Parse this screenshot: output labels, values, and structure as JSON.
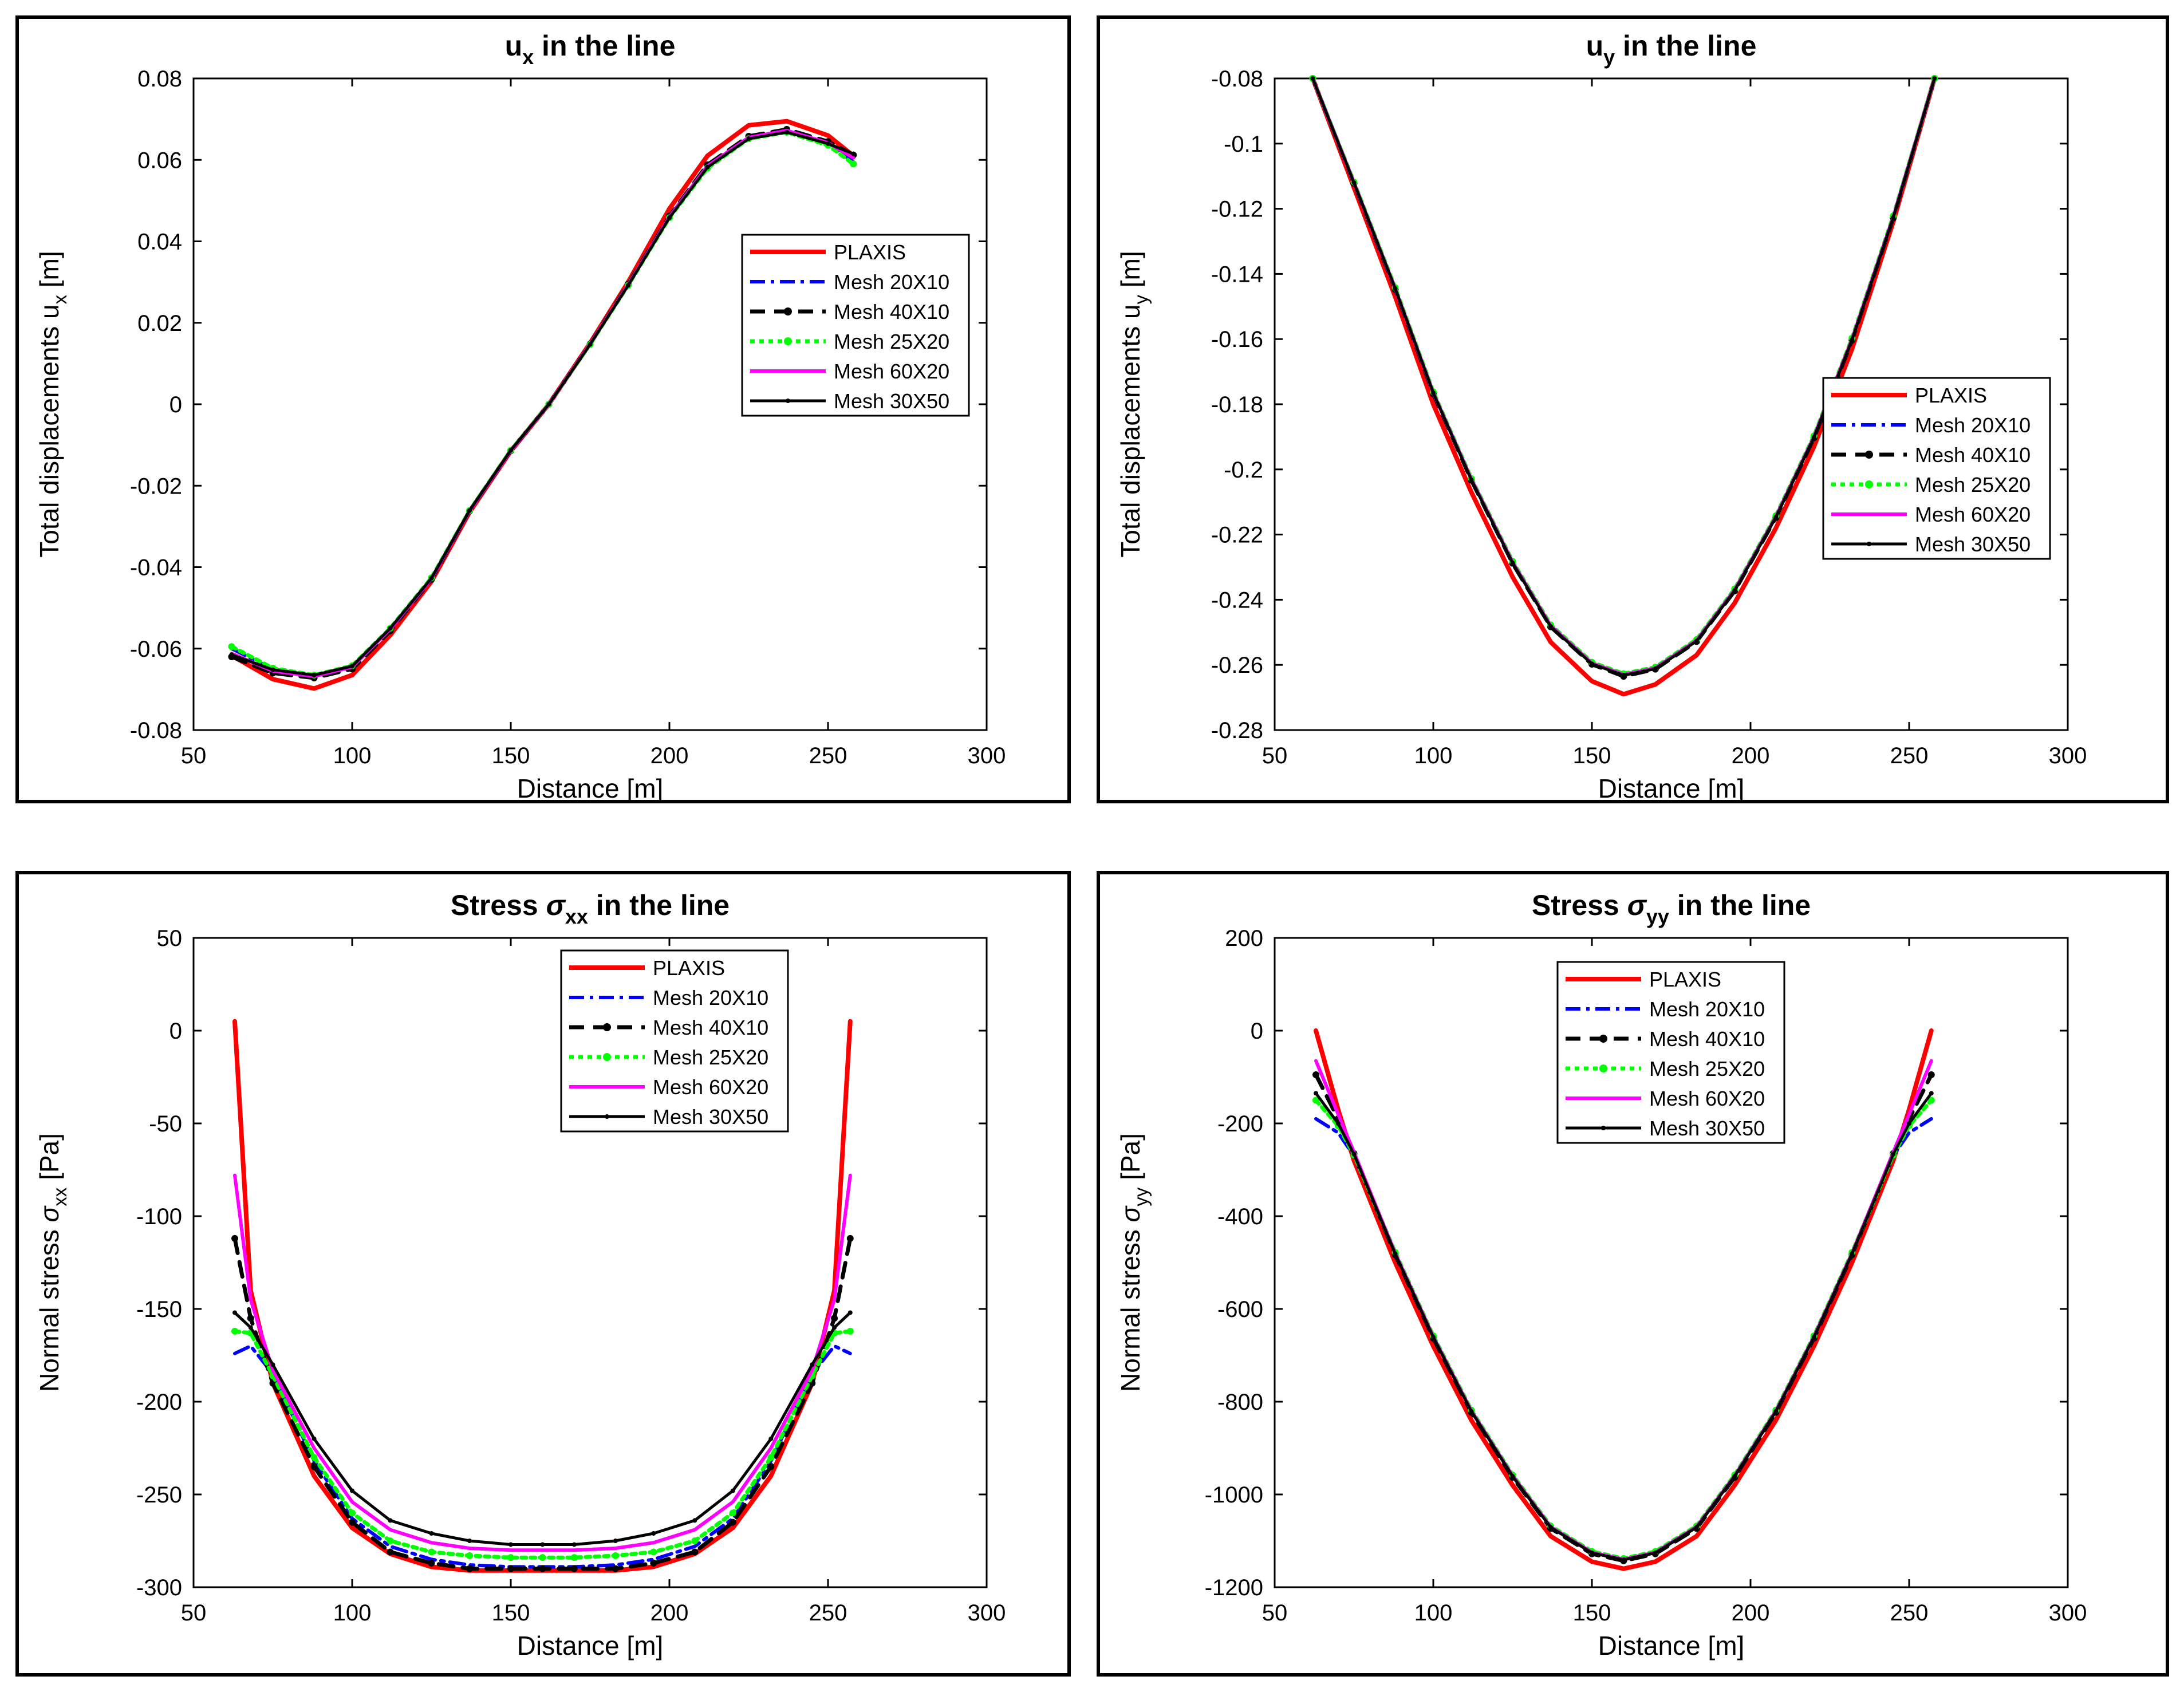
{
  "figure": {
    "legend_entries": [
      "PLAXIS",
      "Mesh 20X10",
      "Mesh 40X10",
      "Mesh 25X20",
      "Mesh 60X20",
      "Mesh 30X50"
    ],
    "series_colors": [
      "#ff0000",
      "#0000ff",
      "#000000",
      "#00ff00",
      "#ff00ff",
      "#000000"
    ]
  },
  "chart_data": [
    {
      "type": "line",
      "title": "u_x in the line",
      "title_parts": [
        "u",
        "x",
        " in the line"
      ],
      "xlabel": "Distance [m]",
      "ylabel": "Total displacements u_x [m]",
      "ylabel_parts": [
        "Total displacements u",
        "x",
        " [m]"
      ],
      "xlim": [
        50,
        300
      ],
      "ylim": [
        -0.08,
        0.08
      ],
      "xticks": [
        50,
        100,
        150,
        200,
        250,
        300
      ],
      "yticks": [
        -0.08,
        -0.06,
        -0.04,
        -0.02,
        0,
        0.02,
        0.04,
        0.06,
        0.08
      ],
      "ytick_labels": [
        "-0.08",
        "-0.06",
        "-0.04",
        "-0.02",
        "0",
        "0.02",
        "0.04",
        "0.06",
        "0.08"
      ],
      "legend_location": "right",
      "x": [
        62,
        75,
        88,
        100,
        112,
        125,
        137,
        150,
        162,
        175,
        187,
        200,
        212,
        225,
        237,
        250,
        258
      ],
      "series": [
        {
          "name": "PLAXIS",
          "values": [
            -0.0617,
            -0.0675,
            -0.0698,
            -0.0665,
            -0.0567,
            -0.0435,
            -0.0265,
            -0.0115,
            0.0,
            0.015,
            0.03,
            0.048,
            0.061,
            0.0685,
            0.0695,
            0.066,
            0.061
          ]
        },
        {
          "name": "Mesh 20X10",
          "values": [
            -0.06,
            -0.065,
            -0.0668,
            -0.0645,
            -0.0552,
            -0.0428,
            -0.0262,
            -0.0114,
            0.0,
            0.0148,
            0.0293,
            0.046,
            0.0585,
            0.0655,
            0.0672,
            0.064,
            0.0595
          ]
        },
        {
          "name": "Mesh 40X10",
          "values": [
            -0.062,
            -0.066,
            -0.0672,
            -0.065,
            -0.0556,
            -0.043,
            -0.0262,
            -0.0114,
            0.0,
            0.0148,
            0.0295,
            0.0462,
            0.0588,
            0.0658,
            0.0675,
            0.0645,
            0.0612
          ]
        },
        {
          "name": "Mesh 25X20",
          "values": [
            -0.0595,
            -0.0648,
            -0.0665,
            -0.0642,
            -0.055,
            -0.0426,
            -0.0261,
            -0.0113,
            0.0,
            0.0147,
            0.0292,
            0.0458,
            0.058,
            0.0652,
            0.0668,
            0.0636,
            0.059
          ]
        },
        {
          "name": "Mesh 60X20",
          "values": [
            -0.0612,
            -0.0655,
            -0.0668,
            -0.0645,
            -0.0552,
            -0.0428,
            -0.0262,
            -0.0114,
            0.0,
            0.0148,
            0.0293,
            0.046,
            0.0585,
            0.0655,
            0.0672,
            0.0642,
            0.0605
          ]
        },
        {
          "name": "Mesh 30X50",
          "values": [
            -0.0615,
            -0.0652,
            -0.0665,
            -0.0643,
            -0.055,
            -0.0427,
            -0.0261,
            -0.0113,
            0.0,
            0.0147,
            0.0292,
            0.0458,
            0.0582,
            0.0652,
            0.0668,
            0.064,
            0.0615
          ]
        }
      ]
    },
    {
      "type": "line",
      "title": "u_y in the line",
      "title_parts": [
        "u",
        "y",
        " in the line"
      ],
      "xlabel": "Distance [m]",
      "ylabel": "Total displacements u_y [m]",
      "ylabel_parts": [
        "Total displacements u",
        "y",
        " [m]"
      ],
      "xlim": [
        50,
        300
      ],
      "ylim": [
        -0.28,
        -0.08
      ],
      "xticks": [
        50,
        100,
        150,
        200,
        250,
        300
      ],
      "yticks": [
        -0.28,
        -0.26,
        -0.24,
        -0.22,
        -0.2,
        -0.18,
        -0.16,
        -0.14,
        -0.12,
        -0.1,
        -0.08
      ],
      "ytick_labels": [
        "-0.28",
        "-0.26",
        "-0.24",
        "-0.22",
        "-0.2",
        "-0.18",
        "-0.16",
        "-0.14",
        "-0.12",
        "-0.1",
        "-0.08"
      ],
      "legend_location": "right",
      "x": [
        62,
        75,
        88,
        100,
        112,
        125,
        137,
        150,
        160,
        170,
        183,
        195,
        208,
        220,
        232,
        245,
        258
      ],
      "series": [
        {
          "name": "PLAXIS",
          "values": [
            -0.08,
            -0.1135,
            -0.147,
            -0.18,
            -0.207,
            -0.233,
            -0.253,
            -0.265,
            -0.269,
            -0.266,
            -0.257,
            -0.241,
            -0.218,
            -0.193,
            -0.163,
            -0.124,
            -0.08
          ]
        },
        {
          "name": "Mesh 20X10",
          "values": [
            -0.08,
            -0.112,
            -0.1445,
            -0.1765,
            -0.203,
            -0.2285,
            -0.248,
            -0.2595,
            -0.263,
            -0.261,
            -0.2525,
            -0.237,
            -0.2145,
            -0.19,
            -0.16,
            -0.1225,
            -0.08
          ]
        },
        {
          "name": "Mesh 40X10",
          "values": [
            -0.08,
            -0.1122,
            -0.1448,
            -0.1768,
            -0.2033,
            -0.2288,
            -0.2483,
            -0.2598,
            -0.2635,
            -0.2613,
            -0.2528,
            -0.2373,
            -0.2148,
            -0.1903,
            -0.1603,
            -0.1228,
            -0.08
          ]
        },
        {
          "name": "Mesh 25X20",
          "values": [
            -0.08,
            -0.1118,
            -0.1442,
            -0.1762,
            -0.2028,
            -0.2282,
            -0.2477,
            -0.2592,
            -0.2627,
            -0.2607,
            -0.2522,
            -0.2367,
            -0.2142,
            -0.1897,
            -0.1597,
            -0.1222,
            -0.08
          ]
        },
        {
          "name": "Mesh 60X20",
          "values": [
            -0.08,
            -0.112,
            -0.1445,
            -0.1765,
            -0.203,
            -0.2285,
            -0.248,
            -0.2595,
            -0.263,
            -0.261,
            -0.2525,
            -0.237,
            -0.2145,
            -0.19,
            -0.16,
            -0.1225,
            -0.08
          ]
        },
        {
          "name": "Mesh 30X50",
          "values": [
            -0.08,
            -0.112,
            -0.1445,
            -0.1765,
            -0.2032,
            -0.2287,
            -0.2482,
            -0.2597,
            -0.2632,
            -0.2612,
            -0.2527,
            -0.2372,
            -0.2147,
            -0.1902,
            -0.1602,
            -0.1227,
            -0.08
          ]
        }
      ]
    },
    {
      "type": "line",
      "title": "Stress σ_xx in the line",
      "title_parts": [
        "Stress ",
        "σ",
        "xx",
        " in the line"
      ],
      "xlabel": "Distance [m]",
      "ylabel": "Normal stress σ_xx [Pa]",
      "ylabel_parts": [
        "Normal stress ",
        "σ",
        "xx",
        " [Pa]"
      ],
      "xlim": [
        50,
        300
      ],
      "ylim": [
        -300,
        50
      ],
      "xticks": [
        50,
        100,
        150,
        200,
        250,
        300
      ],
      "yticks": [
        -300,
        -250,
        -200,
        -150,
        -100,
        -50,
        0,
        50
      ],
      "ytick_labels": [
        "-300",
        "-250",
        "-200",
        "-150",
        "-100",
        "-50",
        "0",
        "50"
      ],
      "legend_location": "top-center",
      "x": [
        63,
        68,
        75,
        88,
        100,
        112,
        125,
        137,
        150,
        160,
        170,
        183,
        195,
        208,
        220,
        232,
        245,
        252,
        257
      ],
      "series": [
        {
          "name": "PLAXIS",
          "values": [
            5,
            -140,
            -190,
            -240,
            -268,
            -282,
            -289,
            -291,
            -291,
            -291,
            -291,
            -291,
            -289,
            -282,
            -268,
            -240,
            -190,
            -140,
            5
          ]
        },
        {
          "name": "Mesh 20X10",
          "values": [
            -174,
            -170,
            -185,
            -232,
            -263,
            -278,
            -285,
            -288,
            -289,
            -289,
            -289,
            -288,
            -285,
            -278,
            -263,
            -232,
            -185,
            -170,
            -174
          ]
        },
        {
          "name": "Mesh 40X10",
          "values": [
            -112,
            -155,
            -190,
            -235,
            -265,
            -281,
            -287,
            -290,
            -290,
            -290,
            -290,
            -290,
            -287,
            -281,
            -265,
            -235,
            -190,
            -155,
            -112
          ]
        },
        {
          "name": "Mesh 25X20",
          "values": [
            -162,
            -163,
            -186,
            -230,
            -260,
            -275,
            -281,
            -283,
            -284,
            -284,
            -284,
            -283,
            -281,
            -275,
            -260,
            -230,
            -186,
            -163,
            -162
          ]
        },
        {
          "name": "Mesh 60X20",
          "values": [
            -78,
            -145,
            -183,
            -225,
            -254,
            -269,
            -276,
            -279,
            -280,
            -280,
            -280,
            -279,
            -276,
            -269,
            -254,
            -225,
            -183,
            -145,
            -78
          ]
        },
        {
          "name": "Mesh 30X50",
          "values": [
            -152,
            -160,
            -180,
            -220,
            -248,
            -264,
            -271,
            -275,
            -277,
            -277,
            -277,
            -275,
            -271,
            -264,
            -248,
            -220,
            -180,
            -160,
            -152
          ]
        }
      ]
    },
    {
      "type": "line",
      "title": "Stress σ_yy in the line",
      "title_parts": [
        "Stress ",
        "σ",
        "yy",
        " in the line"
      ],
      "xlabel": "Distance [m]",
      "ylabel": "Normal stress σ_yy [Pa]",
      "ylabel_parts": [
        "Normal stress ",
        "σ",
        "yy",
        " [Pa]"
      ],
      "xlim": [
        50,
        300
      ],
      "ylim": [
        -1200,
        200
      ],
      "xticks": [
        50,
        100,
        150,
        200,
        250,
        300
      ],
      "yticks": [
        -1200,
        -1000,
        -800,
        -600,
        -400,
        -200,
        0,
        200
      ],
      "ytick_labels": [
        "-1200",
        "-1000",
        "-800",
        "-600",
        "-400",
        "-200",
        "0",
        "200"
      ],
      "legend_location": "top-center",
      "x": [
        63,
        70,
        75,
        88,
        100,
        112,
        125,
        137,
        150,
        160,
        170,
        183,
        195,
        208,
        220,
        232,
        245,
        250,
        257
      ],
      "series": [
        {
          "name": "PLAXIS",
          "values": [
            0,
            -170,
            -280,
            -500,
            -680,
            -840,
            -980,
            -1090,
            -1145,
            -1160,
            -1145,
            -1090,
            -980,
            -840,
            -680,
            -500,
            -280,
            -170,
            0
          ]
        },
        {
          "name": "Mesh 20X10",
          "values": [
            -190,
            -220,
            -270,
            -480,
            -660,
            -820,
            -960,
            -1070,
            -1125,
            -1140,
            -1125,
            -1070,
            -960,
            -820,
            -660,
            -480,
            -270,
            -220,
            -190
          ]
        },
        {
          "name": "Mesh 40X10",
          "values": [
            -95,
            -190,
            -265,
            -483,
            -663,
            -823,
            -963,
            -1073,
            -1128,
            -1143,
            -1128,
            -1073,
            -963,
            -823,
            -663,
            -483,
            -265,
            -190,
            -95
          ]
        },
        {
          "name": "Mesh 25X20",
          "values": [
            -150,
            -205,
            -268,
            -478,
            -658,
            -818,
            -958,
            -1068,
            -1123,
            -1138,
            -1123,
            -1068,
            -958,
            -818,
            -658,
            -478,
            -268,
            -205,
            -150
          ]
        },
        {
          "name": "Mesh 60X20",
          "values": [
            -65,
            -180,
            -262,
            -480,
            -660,
            -820,
            -960,
            -1070,
            -1125,
            -1140,
            -1125,
            -1070,
            -960,
            -820,
            -660,
            -480,
            -262,
            -180,
            -65
          ]
        },
        {
          "name": "Mesh 30X50",
          "values": [
            -135,
            -200,
            -266,
            -481,
            -661,
            -821,
            -961,
            -1071,
            -1126,
            -1141,
            -1126,
            -1071,
            -961,
            -821,
            -661,
            -481,
            -266,
            -200,
            -135
          ]
        }
      ]
    }
  ]
}
